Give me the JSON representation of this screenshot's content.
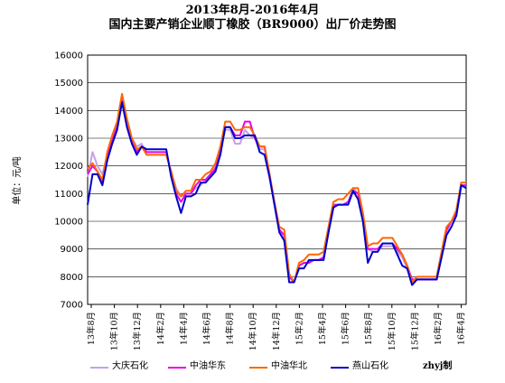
{
  "chart_data": {
    "type": "line",
    "title": "2013年8月-2016年4月",
    "subtitle": "国内主要产销企业顺丁橡胶（BR9000）出厂价走势图",
    "ylabel": "单位：元/吨",
    "xlabel": "",
    "ylim": [
      7000,
      16000
    ],
    "yticks": [
      "16000",
      "15000",
      "14000",
      "13000",
      "12000",
      "11000",
      "10000",
      "9000",
      "8000",
      "7000"
    ],
    "x_tick_labels": [
      "13年8月",
      "13年10月",
      "13年12月",
      "14年2月",
      "14年4月",
      "14年6月",
      "14年8月",
      "14年10月",
      "14年12月",
      "15年2月",
      "15年4月",
      "15年6月",
      "15年8月",
      "15年10月",
      "15年12月",
      "16年2月",
      "16年4月"
    ],
    "grid": true,
    "legend_position": "bottom",
    "series": [
      {
        "name": "大庆石化",
        "color": "#c8a0e6",
        "values": [
          11600,
          12500,
          12000,
          11700,
          12400,
          13000,
          13500,
          14400,
          13500,
          13000,
          12700,
          12800,
          12400,
          12400,
          12400,
          12400,
          12400,
          11800,
          11200,
          10900,
          11000,
          11000,
          11200,
          11300,
          11500,
          11700,
          12000,
          12600,
          13300,
          13300,
          12800,
          12800,
          13300,
          13100,
          13000,
          12600,
          12600,
          11600,
          10600,
          9700,
          9300,
          8000,
          7800,
          8400,
          8500,
          8500,
          8600,
          8600,
          8700,
          9600,
          10500,
          10600,
          10600,
          10700,
          11200,
          11000,
          10100,
          9000,
          8900,
          8900,
          9100,
          9100,
          9100,
          8900,
          8700,
          8300,
          7900,
          7900,
          7900,
          7900,
          7900,
          7900,
          8700,
          9600,
          10000,
          10200,
          11300,
          11300
        ]
      },
      {
        "name": "中油华东",
        "color": "#e600e6",
        "values": [
          11700,
          12000,
          11800,
          11400,
          12300,
          12900,
          13400,
          14500,
          13600,
          12900,
          12500,
          12700,
          12500,
          12500,
          12500,
          12500,
          12500,
          11700,
          11000,
          10700,
          11000,
          11000,
          11300,
          11500,
          11500,
          11700,
          11900,
          12500,
          13400,
          13400,
          13100,
          13100,
          13600,
          13600,
          13000,
          12700,
          12700,
          11700,
          10700,
          9700,
          9500,
          8000,
          7800,
          8400,
          8500,
          8500,
          8600,
          8600,
          8700,
          9700,
          10600,
          10600,
          10600,
          10700,
          11100,
          11000,
          10200,
          9000,
          9000,
          9000,
          9200,
          9200,
          9200,
          9000,
          8800,
          8400,
          7900,
          7900,
          7900,
          7900,
          7900,
          7900,
          8800,
          9700,
          10000,
          10300,
          11300,
          11300
        ]
      },
      {
        "name": "中油华北",
        "color": "#ff6600",
        "values": [
          11900,
          12100,
          11800,
          11500,
          12500,
          13100,
          13600,
          14600,
          13700,
          13000,
          12600,
          12700,
          12400,
          12400,
          12400,
          12400,
          12400,
          11800,
          11100,
          10900,
          11100,
          11100,
          11500,
          11500,
          11700,
          11800,
          12100,
          12700,
          13600,
          13600,
          13300,
          13300,
          13400,
          13400,
          13100,
          12700,
          12700,
          11700,
          10700,
          9800,
          9700,
          8100,
          7800,
          8500,
          8600,
          8800,
          8800,
          8800,
          8900,
          9800,
          10700,
          10800,
          10800,
          11000,
          11200,
          11200,
          10300,
          9100,
          9200,
          9200,
          9400,
          9400,
          9400,
          9100,
          8800,
          8400,
          7800,
          8000,
          8000,
          8000,
          8000,
          8000,
          8900,
          9800,
          10000,
          10400,
          11400,
          11400
        ]
      },
      {
        "name": "燕山石化",
        "color": "#0000cc",
        "values": [
          10600,
          11700,
          11700,
          11300,
          12200,
          12800,
          13300,
          14300,
          13400,
          12800,
          12400,
          12700,
          12600,
          12600,
          12600,
          12600,
          12600,
          11600,
          10900,
          10300,
          10900,
          10900,
          11000,
          11400,
          11400,
          11600,
          11800,
          12400,
          13400,
          13400,
          13000,
          13000,
          13100,
          13100,
          13100,
          12500,
          12400,
          11600,
          10600,
          9600,
          9300,
          7800,
          7800,
          8300,
          8300,
          8600,
          8600,
          8600,
          8600,
          9600,
          10500,
          10600,
          10600,
          10600,
          11100,
          10800,
          10000,
          8500,
          8900,
          8900,
          9200,
          9200,
          9200,
          8800,
          8400,
          8300,
          7700,
          7900,
          7900,
          7900,
          7900,
          7900,
          8700,
          9500,
          9800,
          10200,
          11300,
          11200
        ]
      }
    ]
  },
  "legend_labels": [
    "大庆石化",
    "中油华东",
    "中油华北",
    "燕山石化"
  ],
  "credit": "zhyj制"
}
